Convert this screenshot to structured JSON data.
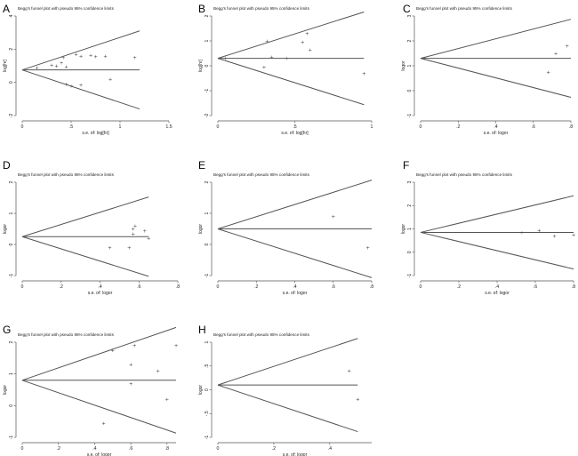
{
  "figure": {
    "background": "#ffffff",
    "line_color": "#555555",
    "point_symbol": "+"
  },
  "chart_data": [
    {
      "panel": "A",
      "type": "scatter",
      "title": "Begg's funnel plot with pseudo 95% confidence limits",
      "xlabel": "s.e. of: log[hr]",
      "ylabel": "log[hr]",
      "xlim": [
        0,
        1.5
      ],
      "ylim": [
        -2,
        4
      ],
      "xticks": [
        "0",
        ".5",
        "1",
        "1.5"
      ],
      "yticks": [
        "-2",
        "0",
        "2",
        "4"
      ],
      "pooled": 0.75,
      "max_se": 1.2,
      "points": [
        [
          0.15,
          0.9
        ],
        [
          0.3,
          1.05
        ],
        [
          0.35,
          1.0
        ],
        [
          0.4,
          1.2
        ],
        [
          0.42,
          1.5
        ],
        [
          0.45,
          0.95
        ],
        [
          0.55,
          1.7
        ],
        [
          0.6,
          1.6
        ],
        [
          0.7,
          1.65
        ],
        [
          0.75,
          1.55
        ],
        [
          0.85,
          1.6
        ],
        [
          1.15,
          1.5
        ],
        [
          0.45,
          -0.1
        ],
        [
          0.5,
          -0.2
        ],
        [
          0.6,
          -0.15
        ],
        [
          0.9,
          0.2
        ]
      ]
    },
    {
      "panel": "B",
      "type": "scatter",
      "title": "Begg's funnel plot with pseudo 95% confidence limits",
      "xlabel": "s.e. of: log[hr]",
      "ylabel": "log[hr]",
      "xlim": [
        0,
        1
      ],
      "ylim": [
        -2,
        2
      ],
      "xticks": [
        "0",
        ".5",
        "1"
      ],
      "yticks": [
        "-2",
        "-1",
        "0",
        "1",
        "2"
      ],
      "pooled": 0.3,
      "max_se": 0.95,
      "points": [
        [
          0.05,
          0.3
        ],
        [
          0.3,
          -0.05
        ],
        [
          0.32,
          1.0
        ],
        [
          0.35,
          0.35
        ],
        [
          0.45,
          0.3
        ],
        [
          0.55,
          0.95
        ],
        [
          0.58,
          1.3
        ],
        [
          0.6,
          0.65
        ],
        [
          0.95,
          -0.3
        ]
      ]
    },
    {
      "panel": "C",
      "type": "scatter",
      "title": "Begg's funnel plot with pseudo 95% confidence limits",
      "xlabel": "s.e. of: logor",
      "ylabel": "logor",
      "xlim": [
        0,
        0.8
      ],
      "ylim": [
        -1,
        3
      ],
      "xticks": [
        "0",
        ".2",
        ".4",
        ".6",
        ".8"
      ],
      "yticks": [
        "-1",
        "0",
        "1",
        "2",
        "3"
      ],
      "pooled": 1.3,
      "max_se": 0.8,
      "points": [
        [
          0.02,
          1.3
        ],
        [
          0.68,
          0.75
        ],
        [
          0.72,
          1.5
        ],
        [
          0.78,
          1.8
        ]
      ]
    },
    {
      "panel": "D",
      "type": "scatter",
      "title": "Begg's funnel plot with pseudo 95% confidence limits",
      "xlabel": "s.e. of: logor",
      "ylabel": "logor",
      "xlim": [
        0,
        0.8
      ],
      "ylim": [
        -1,
        2
      ],
      "xticks": [
        "0",
        ".2",
        ".4",
        ".6",
        ".8"
      ],
      "yticks": [
        "-1",
        "0",
        "1",
        "2"
      ],
      "pooled": 0.25,
      "max_se": 0.65,
      "points": [
        [
          0.45,
          -0.1
        ],
        [
          0.55,
          -0.1
        ],
        [
          0.57,
          0.35
        ],
        [
          0.57,
          0.5
        ],
        [
          0.58,
          0.6
        ],
        [
          0.63,
          0.45
        ],
        [
          0.65,
          0.2
        ]
      ]
    },
    {
      "panel": "E",
      "type": "scatter",
      "title": "Begg's funnel plot with pseudo 95% confidence limits",
      "xlabel": "s.e. of: logor",
      "ylabel": "logor",
      "xlim": [
        0,
        0.8
      ],
      "ylim": [
        -1,
        2
      ],
      "xticks": [
        "0",
        ".2",
        ".4",
        ".6",
        ".8"
      ],
      "yticks": [
        "-1",
        "0",
        "1",
        "2"
      ],
      "pooled": 0.5,
      "max_se": 0.8,
      "points": [
        [
          0.6,
          0.9
        ],
        [
          0.78,
          -0.1
        ]
      ]
    },
    {
      "panel": "F",
      "type": "scatter",
      "title": "Begg's funnel plot with pseudo 95% confidence limits",
      "xlabel": "s.e. of: logor",
      "ylabel": "logor",
      "xlim": [
        0,
        0.8
      ],
      "ylim": [
        -1,
        3
      ],
      "xticks": [
        "0",
        ".2",
        ".4",
        ".6",
        ".8"
      ],
      "yticks": [
        "-1",
        "0",
        "1",
        "2",
        "3"
      ],
      "pooled": 0.85,
      "max_se": 0.8,
      "points": [
        [
          0.53,
          0.85
        ],
        [
          0.62,
          0.95
        ],
        [
          0.7,
          0.7
        ],
        [
          0.8,
          0.75
        ]
      ]
    },
    {
      "panel": "G",
      "type": "scatter",
      "title": "Begg's funnel plot with pseudo 95% confidence limits",
      "xlabel": "s.e. of: logor",
      "ylabel": "logor",
      "xlim": [
        0,
        0.85
      ],
      "ylim": [
        -1,
        2
      ],
      "xticks": [
        "0",
        ".2",
        ".4",
        ".6",
        ".8"
      ],
      "yticks": [
        "-1",
        "0",
        "1",
        "2"
      ],
      "pooled": 0.8,
      "max_se": 0.85,
      "points": [
        [
          0.45,
          -0.55
        ],
        [
          0.5,
          1.75
        ],
        [
          0.6,
          0.7
        ],
        [
          0.6,
          1.3
        ],
        [
          0.62,
          1.9
        ],
        [
          0.75,
          1.1
        ],
        [
          0.8,
          0.2
        ],
        [
          0.85,
          1.9
        ]
      ]
    },
    {
      "panel": "H",
      "type": "scatter",
      "title": "Begg's funnel plot with pseudo 95% confidence limits",
      "xlabel": "s.e. of: logor",
      "ylabel": "logor",
      "xlim": [
        0,
        0.55
      ],
      "ylim": [
        -1,
        1
      ],
      "xticks": [
        "0",
        ".2",
        ".4"
      ],
      "yticks": [
        "-1",
        "-.5",
        "0",
        ".5",
        "1"
      ],
      "pooled": 0.1,
      "max_se": 0.5,
      "points": [
        [
          0.47,
          0.4
        ],
        [
          0.5,
          -0.2
        ]
      ]
    }
  ]
}
